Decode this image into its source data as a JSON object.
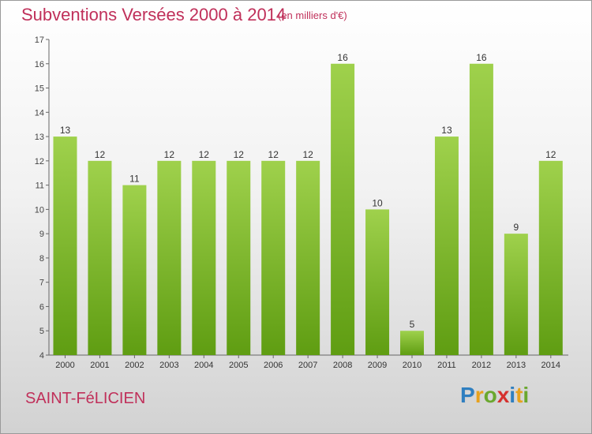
{
  "header": {
    "title": "Subventions Versées 2000 à 2014",
    "unit": "(en milliers d'€)"
  },
  "commune": "SAINT-FéLICIEN",
  "logo": {
    "text": "Proxiti",
    "letters": [
      {
        "char": "P",
        "color": "#2f7fc0"
      },
      {
        "char": "r",
        "color": "#e8a21c"
      },
      {
        "char": "o",
        "color": "#6aa82e"
      },
      {
        "char": "x",
        "color": "#d6312e"
      },
      {
        "char": "i",
        "color": "#2f7fc0"
      },
      {
        "char": "t",
        "color": "#e8a21c"
      },
      {
        "char": "i",
        "color": "#6aa82e"
      }
    ]
  },
  "colors": {
    "accent": "#c0305a",
    "bar_top": "#9fd14c",
    "bar_bottom": "#5f9d12"
  },
  "chart_data": {
    "type": "bar",
    "title": "Subventions Versées 2000 à 2014",
    "subtitle": "(en milliers d'€)",
    "categories": [
      "2000",
      "2001",
      "2002",
      "2003",
      "2004",
      "2005",
      "2006",
      "2007",
      "2008",
      "2009",
      "2010",
      "2011",
      "2012",
      "2013",
      "2014"
    ],
    "values": [
      13,
      12,
      11,
      12,
      12,
      12,
      12,
      12,
      16,
      10,
      5,
      13,
      16,
      9,
      12
    ],
    "ylim": [
      4,
      17
    ],
    "yticks": [
      4,
      5,
      6,
      7,
      8,
      9,
      10,
      11,
      12,
      13,
      14,
      15,
      16,
      17
    ],
    "grid": false,
    "legend": "none"
  }
}
